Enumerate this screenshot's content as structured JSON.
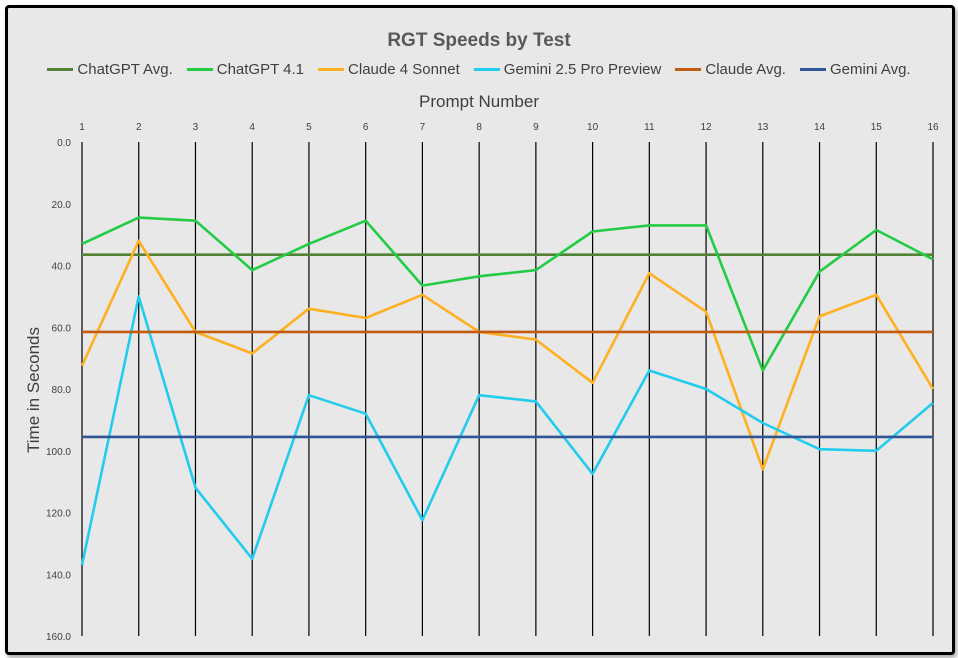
{
  "chart_data": {
    "type": "line",
    "title": "RGT Speeds by Test",
    "xlabel": "Prompt Number",
    "ylabel": "Time in Seconds",
    "x": [
      1,
      2,
      3,
      4,
      5,
      6,
      7,
      8,
      9,
      10,
      11,
      12,
      13,
      14,
      15,
      16
    ],
    "ylim": [
      0,
      160
    ],
    "y_inverted": true,
    "y_ticks": [
      "0.0",
      "20.0",
      "40.0",
      "60.0",
      "80.0",
      "100.0",
      "120.0",
      "140.0",
      "160.0"
    ],
    "x_axis_position": "top",
    "vertical_gridlines": true,
    "legend_position": "top",
    "series": [
      {
        "name": "ChatGPT Avg.",
        "color": "#548235",
        "values": [
          36.5,
          36.5,
          36.5,
          36.5,
          36.5,
          36.5,
          36.5,
          36.5,
          36.5,
          36.5,
          36.5,
          36.5,
          36.5,
          36.5,
          36.5,
          36.5
        ]
      },
      {
        "name": "ChatGPT 4.1",
        "color": "#22cc44",
        "values": [
          33,
          24.5,
          25.5,
          41.5,
          33,
          25.5,
          46.5,
          43.5,
          41.5,
          29,
          27,
          27,
          74,
          42,
          28.5,
          38
        ]
      },
      {
        "name": "Claude 4 Sonnet",
        "color": "#ffb020",
        "values": [
          72.5,
          32,
          61.5,
          68.5,
          54,
          57,
          49.5,
          61.5,
          64,
          78,
          42.5,
          55,
          106,
          56.5,
          49.5,
          80
        ]
      },
      {
        "name": "Gemini 2.5 Pro Preview",
        "color": "#22ccee",
        "values": [
          137,
          50,
          112,
          135,
          82,
          88,
          122.5,
          82,
          84,
          107.5,
          74,
          80,
          91,
          99.5,
          100,
          84.5
        ]
      },
      {
        "name": "Claude Avg.",
        "color": "#c55a11",
        "values": [
          61.5,
          61.5,
          61.5,
          61.5,
          61.5,
          61.5,
          61.5,
          61.5,
          61.5,
          61.5,
          61.5,
          61.5,
          61.5,
          61.5,
          61.5,
          61.5
        ]
      },
      {
        "name": "Gemini Avg.",
        "color": "#2f5597",
        "values": [
          95.5,
          95.5,
          95.5,
          95.5,
          95.5,
          95.5,
          95.5,
          95.5,
          95.5,
          95.5,
          95.5,
          95.5,
          95.5,
          95.5,
          95.5,
          95.5
        ]
      }
    ]
  }
}
